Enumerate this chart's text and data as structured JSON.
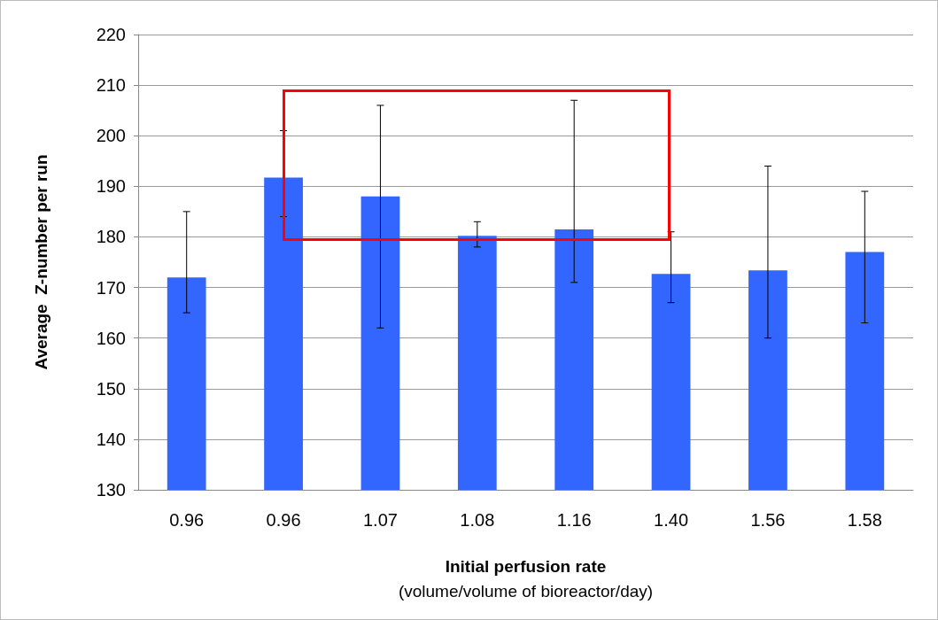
{
  "chart_data": {
    "type": "bar",
    "categories": [
      "0.96",
      "0.96",
      "1.07",
      "1.08",
      "1.16",
      "1.40",
      "1.56",
      "1.58"
    ],
    "values": [
      172,
      191.7,
      188,
      180.2,
      181.5,
      172.7,
      173.4,
      177
    ],
    "errors": [
      [
        165,
        185
      ],
      [
        184,
        201
      ],
      [
        162,
        206
      ],
      [
        178,
        183
      ],
      [
        171,
        207
      ],
      [
        167,
        181
      ],
      [
        160,
        194
      ],
      [
        163,
        189
      ]
    ],
    "color": "#3366ff",
    "xlabel": "Initial perfusion rate\n(volume/volume of bioreactor/day)",
    "ylabel": "Average  Z-number per run",
    "ylim": [
      130,
      220
    ],
    "yticks": [
      130,
      140,
      150,
      160,
      170,
      180,
      190,
      200,
      210,
      220
    ],
    "grid": "y"
  }
}
